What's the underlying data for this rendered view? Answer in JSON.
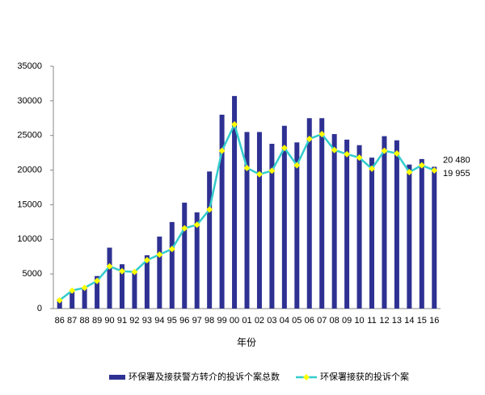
{
  "chart_data": {
    "type": "bar-line",
    "categories": [
      "86",
      "87",
      "88",
      "89",
      "90",
      "91",
      "92",
      "93",
      "94",
      "95",
      "96",
      "97",
      "98",
      "99",
      "00",
      "01",
      "02",
      "03",
      "04",
      "05",
      "06",
      "07",
      "08",
      "09",
      "10",
      "11",
      "12",
      "13",
      "14",
      "15",
      "16"
    ],
    "x_label": "年份",
    "series": [
      {
        "name": "环保署及接获警方转介的投诉个案总数",
        "type": "bar",
        "color": "#2e3192",
        "values": [
          1400,
          2600,
          3000,
          4700,
          8800,
          6400,
          5500,
          7700,
          10400,
          12500,
          15300,
          13900,
          19800,
          28000,
          30700,
          25500,
          25500,
          23800,
          26400,
          24000,
          27500,
          27500,
          25200,
          24400,
          23600,
          21800,
          24900,
          24300,
          20800,
          21600,
          20480
        ],
        "value_labels": [
          null,
          null,
          null,
          null,
          null,
          null,
          null,
          null,
          null,
          null,
          null,
          null,
          null,
          null,
          null,
          null,
          null,
          null,
          null,
          null,
          null,
          null,
          null,
          null,
          null,
          null,
          null,
          null,
          null,
          null,
          "20 480"
        ]
      },
      {
        "name": "环保署接获的投诉个案",
        "type": "line",
        "color": "#33cccc",
        "marker_color": "#ffff00",
        "values": [
          1200,
          2600,
          3000,
          4000,
          6100,
          5400,
          5300,
          7000,
          7800,
          8600,
          11600,
          12100,
          14300,
          22800,
          26600,
          20300,
          19400,
          19900,
          23200,
          20700,
          24500,
          25200,
          22900,
          22300,
          21800,
          20200,
          22800,
          22400,
          19700,
          20700,
          19955
        ],
        "value_labels": [
          null,
          null,
          null,
          null,
          null,
          null,
          null,
          null,
          null,
          null,
          null,
          null,
          null,
          null,
          null,
          null,
          null,
          null,
          null,
          null,
          null,
          null,
          null,
          null,
          null,
          null,
          null,
          null,
          null,
          null,
          "19 955"
        ]
      }
    ],
    "ylim": [
      0,
      35000
    ],
    "yticks": [
      0,
      5000,
      10000,
      15000,
      20000,
      25000,
      30000,
      35000
    ],
    "grid": false,
    "legend": "bottom"
  }
}
